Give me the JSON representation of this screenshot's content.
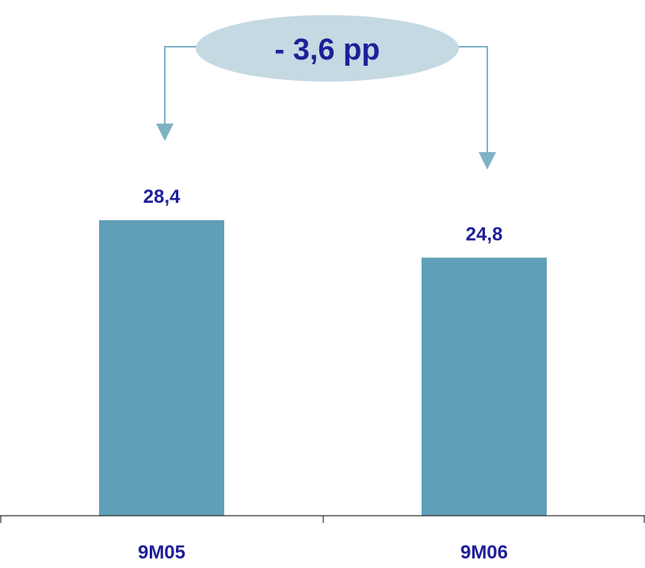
{
  "chart_data": {
    "type": "bar",
    "categories": [
      "9M05",
      "9M06"
    ],
    "values": [
      28.4,
      24.8
    ],
    "value_labels": [
      "28,4",
      "24,8"
    ],
    "annotation": "- 3,6 pp",
    "title": "",
    "xlabel": "",
    "ylabel": "",
    "ylim": [
      0,
      33.5
    ],
    "grid": false,
    "legend": "none"
  },
  "colors": {
    "bar": "#5f9fb7",
    "text": "#1f1f99",
    "arrow": "#7fb2c5",
    "ellipse": "#c5d9e3",
    "axis": "#333333"
  }
}
